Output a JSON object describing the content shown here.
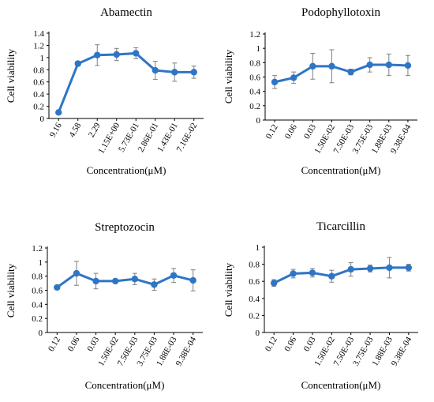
{
  "chart_data": [
    {
      "type": "line",
      "title": "Abamectin",
      "xlabel": "Concentration(μM)",
      "ylabel": "Cell viability",
      "categories": [
        "9.16",
        "4.58",
        "2.29",
        "1.15E+00",
        "5.73E-01",
        "2.86E-01",
        "1.43E-01",
        "7.16E-02"
      ],
      "values": [
        0.1,
        0.9,
        1.04,
        1.05,
        1.07,
        0.79,
        0.76,
        0.76
      ],
      "errors": [
        0.0,
        0.04,
        0.17,
        0.1,
        0.09,
        0.15,
        0.15,
        0.1
      ],
      "ylim": [
        0,
        1.4
      ],
      "yticks": [
        "0",
        "0.2",
        "0.4",
        "0.6",
        "0.8",
        "1",
        "1.2",
        "1.4"
      ],
      "color": "#2e75c6"
    },
    {
      "type": "line",
      "title": "Podophyllotoxin",
      "xlabel": "Concentration(μM)",
      "ylabel": "Cell viability",
      "categories": [
        "0.12",
        "0.06",
        "0.03",
        "1.50E-02",
        "7.50E-03",
        "3.75E-03",
        "1.88E-03",
        "9.38E-04"
      ],
      "values": [
        0.53,
        0.59,
        0.75,
        0.75,
        0.67,
        0.77,
        0.77,
        0.76
      ],
      "errors": [
        0.09,
        0.08,
        0.18,
        0.23,
        0.04,
        0.1,
        0.15,
        0.14
      ],
      "ylim": [
        0,
        1.2
      ],
      "yticks": [
        "0",
        "0.2",
        "0.4",
        "0.6",
        "0.8",
        "1",
        "1.2"
      ],
      "color": "#2e75c6"
    },
    {
      "type": "line",
      "title": "Streptozocin",
      "xlabel": "Concentration(μM)",
      "ylabel": "Cell viability",
      "categories": [
        "0.12",
        "0.06",
        "0.03",
        "1.50E-02",
        "7.50E-03",
        "3.75E-03",
        "1.88E-03",
        "9.38E-04"
      ],
      "values": [
        0.64,
        0.84,
        0.73,
        0.73,
        0.76,
        0.68,
        0.81,
        0.74
      ],
      "errors": [
        0.0,
        0.17,
        0.11,
        0.03,
        0.08,
        0.08,
        0.1,
        0.15
      ],
      "ylim": [
        0,
        1.2
      ],
      "yticks": [
        "0",
        "0.2",
        "0.4",
        "0.6",
        "0.8",
        "1",
        "1.2"
      ],
      "color": "#2e75c6"
    },
    {
      "type": "line",
      "title": "Ticarcillin",
      "xlabel": "Concentration(μM)",
      "ylabel": "Cell viability",
      "categories": [
        "0.12",
        "0.06",
        "0.03",
        "1.50E-02",
        "7.50E-03",
        "3.75E-03",
        "1.88E-03",
        "9.38E-04"
      ],
      "values": [
        0.58,
        0.69,
        0.7,
        0.66,
        0.74,
        0.75,
        0.76,
        0.76
      ],
      "errors": [
        0.04,
        0.05,
        0.05,
        0.07,
        0.08,
        0.04,
        0.12,
        0.04
      ],
      "ylim": [
        0,
        1.0
      ],
      "yticks": [
        "0",
        "0.2",
        "0.4",
        "0.6",
        "0.8",
        "1"
      ],
      "color": "#2e75c6"
    }
  ]
}
